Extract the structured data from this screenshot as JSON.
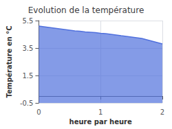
{
  "chart_data": {
    "type": "area",
    "title": "Evolution de la température",
    "xlabel": "heure par heure",
    "ylabel": "Température en °C",
    "x": [
      0.0,
      0.083,
      0.167,
      0.25,
      0.333,
      0.417,
      0.5,
      0.583,
      0.667,
      0.75,
      0.833,
      0.917,
      1.0,
      1.083,
      1.167,
      1.25,
      1.333,
      1.417,
      1.5,
      1.583,
      1.667,
      1.75,
      1.833,
      1.917,
      2.0
    ],
    "values": [
      5.1,
      5.05,
      5.0,
      4.95,
      4.9,
      4.85,
      4.8,
      4.75,
      4.72,
      4.68,
      4.65,
      4.62,
      4.58,
      4.55,
      4.5,
      4.45,
      4.4,
      4.35,
      4.3,
      4.25,
      4.2,
      4.1,
      4.0,
      3.9,
      3.8
    ],
    "xlim": [
      0,
      2
    ],
    "ylim": [
      -0.5,
      5.5
    ],
    "xticks": [
      0,
      1,
      2
    ],
    "yticks": [
      -0.5,
      1.5,
      3.5,
      5.5
    ],
    "grid": true
  }
}
